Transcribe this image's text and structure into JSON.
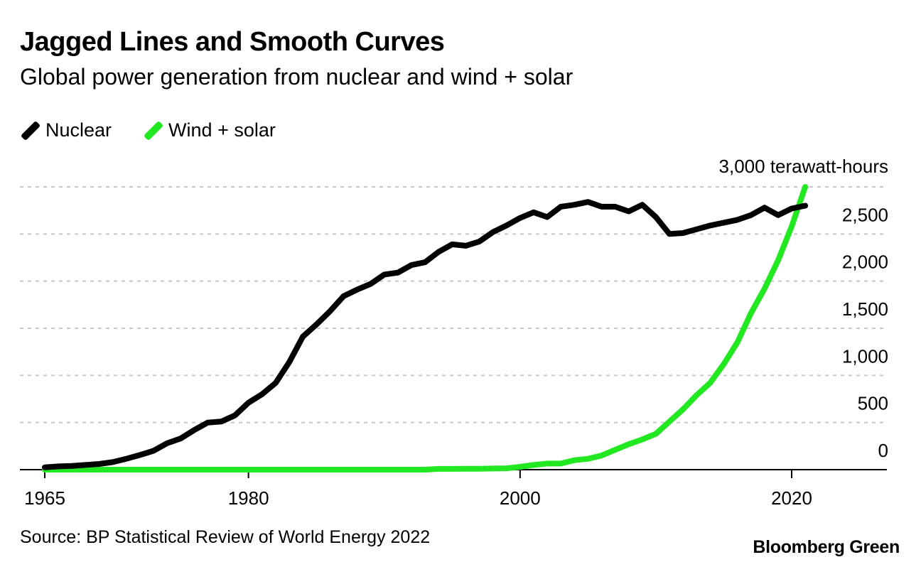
{
  "header": {
    "title": "Jagged Lines and Smooth Curves",
    "subtitle": "Global power generation from nuclear and wind + solar"
  },
  "legend": [
    {
      "label": "Nuclear",
      "color": "#000000"
    },
    {
      "label": "Wind + solar",
      "color": "#22e822"
    }
  ],
  "footer": {
    "source": "Source: BP Statistical Review of World Energy 2022",
    "brand": "Bloomberg Green"
  },
  "chart_data": {
    "type": "line",
    "title": "Jagged Lines and Smooth Curves",
    "subtitle": "Global power generation from nuclear and wind + solar",
    "xlabel": "",
    "ylabel": "",
    "y_unit_label": "3,000 terawatt-hours",
    "xlim": [
      1965,
      2026
    ],
    "ylim": [
      0,
      3000
    ],
    "x_ticks": [
      1965,
      1980,
      2000,
      2020
    ],
    "y_ticks": [
      0,
      500,
      1000,
      1500,
      2000,
      2500
    ],
    "y_tick_labels": [
      "0",
      "500",
      "1,000",
      "1,500",
      "2,000",
      "2,500"
    ],
    "grid": true,
    "legend_position": "top-left",
    "x": [
      1965,
      1966,
      1967,
      1968,
      1969,
      1970,
      1971,
      1972,
      1973,
      1974,
      1975,
      1976,
      1977,
      1978,
      1979,
      1980,
      1981,
      1982,
      1983,
      1984,
      1985,
      1986,
      1987,
      1988,
      1989,
      1990,
      1991,
      1992,
      1993,
      1994,
      1995,
      1996,
      1997,
      1998,
      1999,
      2000,
      2001,
      2002,
      2003,
      2004,
      2005,
      2006,
      2007,
      2008,
      2009,
      2010,
      2011,
      2012,
      2013,
      2014,
      2015,
      2016,
      2017,
      2018,
      2019,
      2020,
      2021
    ],
    "series": [
      {
        "name": "Nuclear",
        "color": "#000000",
        "values": [
          25,
          35,
          40,
          50,
          60,
          80,
          115,
          155,
          200,
          280,
          330,
          420,
          500,
          510,
          575,
          710,
          800,
          920,
          1140,
          1410,
          1540,
          1680,
          1840,
          1910,
          1970,
          2070,
          2090,
          2170,
          2200,
          2310,
          2390,
          2375,
          2420,
          2520,
          2590,
          2670,
          2730,
          2680,
          2790,
          2810,
          2840,
          2790,
          2790,
          2740,
          2810,
          2680,
          2500,
          2510,
          2550,
          2590,
          2620,
          2650,
          2700,
          2780,
          2700,
          2770,
          2800
        ],
        "visible_range": [
          1965,
          2021
        ]
      },
      {
        "name": "Wind + solar",
        "color": "#22e822",
        "values": [
          0,
          0,
          0,
          0,
          0,
          0,
          0,
          0,
          0,
          0,
          0,
          0,
          0,
          0,
          0,
          0,
          0,
          0,
          0,
          0,
          0,
          0,
          0,
          0,
          0,
          0,
          0,
          0,
          0,
          8,
          8,
          9,
          10,
          12,
          14,
          30,
          50,
          65,
          65,
          100,
          115,
          150,
          210,
          270,
          320,
          380,
          510,
          640,
          790,
          920,
          1120,
          1350,
          1660,
          1920,
          2220,
          2580,
          3000
        ]
      }
    ]
  }
}
